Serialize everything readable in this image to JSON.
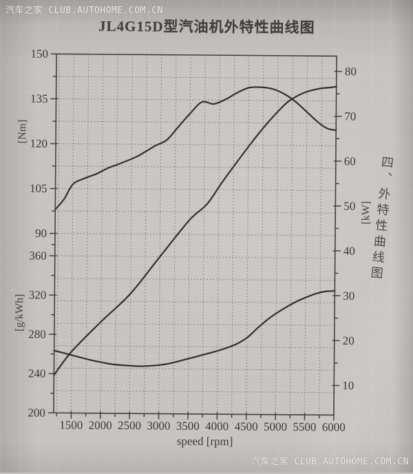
{
  "watermarks": {
    "top": "汽车之家 CLUB.AUTOHOME.COM.CN",
    "bottom": "汽车之家 CLUB.AUTOHOME.COM.CN"
  },
  "page": {
    "title": "JL4G15D型汽油机外特性曲线图",
    "side_note": "四、外特性曲线图"
  },
  "colors": {
    "paper": "#c6c4c0",
    "axis": "#454139",
    "grid": "#7b786f",
    "curve": "#322f2a",
    "text": "#3b3834",
    "watermark": "#f4f3f0"
  },
  "chart_data": {
    "type": "line",
    "title": "JL4G15D型汽油机外特性曲线图",
    "xlabel": "speed [rpm]",
    "xlim": [
      1200,
      6000
    ],
    "x_major_ticks": [
      1500,
      2000,
      2500,
      3000,
      3500,
      4000,
      4500,
      5000,
      5500,
      6000
    ],
    "x_minor_step": 250,
    "grid": "dotted",
    "y_axes": {
      "left_top": {
        "id": "torque",
        "unit": "[Nm]",
        "ticks": [
          150,
          135,
          120,
          105,
          90
        ],
        "range": [
          90,
          150
        ]
      },
      "left_bottom": {
        "id": "bsfc",
        "unit": "[g/kWh]",
        "ticks": [
          360,
          320,
          280,
          240,
          200
        ],
        "range": [
          200,
          360
        ]
      },
      "right": {
        "id": "power",
        "unit": "[kW]",
        "ticks": [
          80,
          70,
          60,
          50,
          40,
          30,
          20,
          10
        ],
        "range": [
          10,
          80
        ]
      }
    },
    "series": [
      {
        "name": "torque",
        "unit": "Nm",
        "axis": "torque",
        "points": [
          [
            1200,
            98
          ],
          [
            1350,
            101.5
          ],
          [
            1500,
            106.5
          ],
          [
            1700,
            108.5
          ],
          [
            1900,
            110
          ],
          [
            2100,
            112
          ],
          [
            2300,
            113.5
          ],
          [
            2600,
            116
          ],
          [
            2900,
            119.5
          ],
          [
            3100,
            121.5
          ],
          [
            3300,
            126
          ],
          [
            3500,
            130.5
          ],
          [
            3700,
            134.3
          ],
          [
            3900,
            133.7
          ],
          [
            4100,
            135.2
          ],
          [
            4300,
            137.5
          ],
          [
            4500,
            139.2
          ],
          [
            4700,
            139.4
          ],
          [
            4900,
            138.9
          ],
          [
            5100,
            137.3
          ],
          [
            5300,
            134.7
          ],
          [
            5500,
            131.2
          ],
          [
            5700,
            127.7
          ],
          [
            5850,
            125.8
          ],
          [
            6000,
            125.2
          ]
        ]
      },
      {
        "name": "power",
        "unit": "kW",
        "axis": "power",
        "points": [
          [
            1200,
            11.8
          ],
          [
            1500,
            17.1
          ],
          [
            2000,
            23.8
          ],
          [
            2500,
            30.1
          ],
          [
            3000,
            38.4
          ],
          [
            3500,
            46.6
          ],
          [
            3800,
            50.2
          ],
          [
            4050,
            55
          ],
          [
            4300,
            59.5
          ],
          [
            4550,
            63.9
          ],
          [
            4800,
            68
          ],
          [
            5050,
            71.6
          ],
          [
            5200,
            73.4
          ],
          [
            5450,
            75.2
          ],
          [
            5700,
            76.1
          ],
          [
            5900,
            76.4
          ],
          [
            6000,
            76.6
          ]
        ]
      },
      {
        "name": "fuel-consumption",
        "unit": "g/kWh",
        "axis": "bsfc",
        "points": [
          [
            1200,
            263.5
          ],
          [
            1400,
            260.5
          ],
          [
            1600,
            257.5
          ],
          [
            1800,
            254.5
          ],
          [
            2000,
            252
          ],
          [
            2200,
            250
          ],
          [
            2400,
            249
          ],
          [
            2700,
            248.2
          ],
          [
            3000,
            249.5
          ],
          [
            3200,
            251.5
          ],
          [
            3450,
            255.5
          ],
          [
            3700,
            259.5
          ],
          [
            4000,
            264.5
          ],
          [
            4300,
            271
          ],
          [
            4500,
            278
          ],
          [
            4700,
            289
          ],
          [
            4900,
            299
          ],
          [
            5100,
            307
          ],
          [
            5300,
            314
          ],
          [
            5500,
            319.5
          ],
          [
            5700,
            324
          ],
          [
            5850,
            326
          ],
          [
            6000,
            326.5
          ]
        ]
      }
    ]
  }
}
